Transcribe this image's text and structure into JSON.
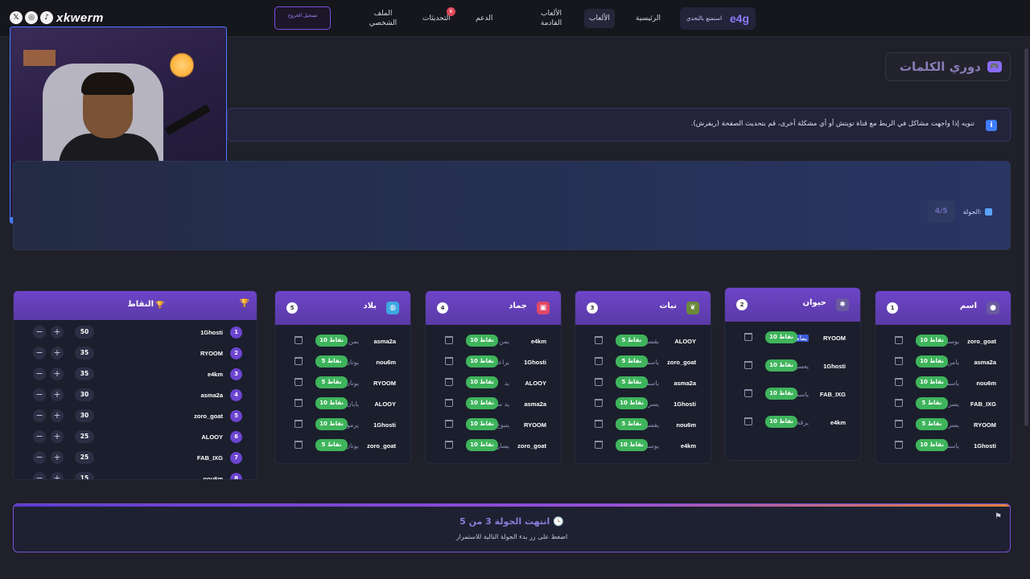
{
  "nav": {
    "brand_logo": "e4g",
    "brand_tag": "استمتع بالتحدي",
    "items": [
      {
        "label": "الرئيسية"
      },
      {
        "label": "الألعاب"
      },
      {
        "label": "الألعاب القادمة"
      },
      {
        "label": "الدعم"
      },
      {
        "label": "التحديثات",
        "badge": "6"
      },
      {
        "label": "الملف الشخصي"
      }
    ],
    "register_label": "تسجيل الخروج"
  },
  "overlay": {
    "handle": "xkwerm",
    "social_icons": [
      "x-icon",
      "instagram-icon",
      "tiktok-icon"
    ]
  },
  "page_title": "دوري الكلمات",
  "notice": "تنويه إذا واجهت مشاكل في الربط مع قناة تويتش أو أي مشكلة أخرى، قم بتحديث الصفحة (ريفرش).",
  "round": {
    "label": "الجولة:",
    "value": "4/5"
  },
  "score_card": {
    "title": "النقاط",
    "rows": [
      {
        "rank": "1",
        "player": "1Ghosti",
        "score": "50"
      },
      {
        "rank": "2",
        "player": "RYOOM",
        "score": "35"
      },
      {
        "rank": "3",
        "player": "e4km",
        "score": "35"
      },
      {
        "rank": "4",
        "player": "asma2a",
        "score": "30"
      },
      {
        "rank": "5",
        "player": "zoro_goat",
        "score": "30"
      },
      {
        "rank": "6",
        "player": "ALOOY",
        "score": "25"
      },
      {
        "rank": "7",
        "player": "FAB_IXG",
        "score": "25"
      },
      {
        "rank": "8",
        "player": "nou6m",
        "score": "15"
      }
    ]
  },
  "categories": [
    {
      "num": "5",
      "title": "بلاد",
      "icon": "globe-icon",
      "color": "#3fa8e0",
      "rows": [
        {
          "player": "asma2a",
          "word": "يمن",
          "points": "10 نقاط"
        },
        {
          "player": "nou6m",
          "word": "يونان",
          "points": "5 نقاط"
        },
        {
          "player": "RYOOM",
          "word": "يونان",
          "points": "5 نقاط"
        },
        {
          "player": "ALOOY",
          "word": "يابان",
          "points": "10 نقاط"
        },
        {
          "player": "1Ghosti",
          "word": "يرموك",
          "points": "10 نقاط"
        },
        {
          "player": "zoro_goat",
          "word": "يونان",
          "points": "5 نقاط"
        }
      ]
    },
    {
      "num": "4",
      "title": "جماد",
      "icon": "box-icon",
      "color": "#e04868",
      "rows": [
        {
          "player": "e4km",
          "word": "يمن",
          "points": "10 نقاط"
        },
        {
          "player": "1Ghosti",
          "word": "يراعة",
          "points": "10 نقاط"
        },
        {
          "player": "ALOOY",
          "word": "يد",
          "points": "10 نقاط"
        },
        {
          "player": "asma2a",
          "word": "يد سوني",
          "points": "10 نقاط"
        },
        {
          "player": "RYOOM",
          "word": "ينبوع",
          "points": "10 نقاط"
        },
        {
          "player": "zoro_goat",
          "word": "يسار",
          "points": "10 نقاط"
        }
      ]
    },
    {
      "num": "3",
      "title": "نبات",
      "icon": "leaf-icon",
      "color": "#6a8a3a",
      "rows": [
        {
          "player": "ALOOY",
          "word": "يقسون",
          "points": "5 نقاط"
        },
        {
          "player": "zoro_goat",
          "word": "ياسمين",
          "points": "5 نقاط"
        },
        {
          "player": "asma2a",
          "word": "ياسمين",
          "points": "5 نقاط"
        },
        {
          "player": "1Ghosti",
          "word": "يسر",
          "points": "10 نقاط"
        },
        {
          "player": "nou6m",
          "word": "يقسون",
          "points": "5 نقاط"
        },
        {
          "player": "e4km",
          "word": "يوسفي",
          "points": "10 نقاط"
        }
      ]
    },
    {
      "num": "2",
      "title": "حيوان",
      "icon": "paw-icon",
      "color": "#6a5aa0",
      "rows": [
        {
          "player": "RYOOM",
          "word": "يمامة",
          "points": "10 نقاط",
          "highlight": true
        },
        {
          "player": "1Ghosti",
          "word": "يعسوب",
          "points": "10 نقاط"
        },
        {
          "player": "FAB_IXG",
          "word": "ياسمين",
          "points": "10 نقاط"
        },
        {
          "player": "e4km",
          "word": "يرقة",
          "points": "10 نقاط"
        }
      ]
    },
    {
      "num": "1",
      "title": "اسم",
      "icon": "user-icon",
      "color": "#6a5aa0",
      "rows": [
        {
          "player": "zoro_goat",
          "word": "يوسف",
          "points": "10 نقاط"
        },
        {
          "player": "asma2a",
          "word": "يامن",
          "points": "10 نقاط"
        },
        {
          "player": "nou6m",
          "word": "ياسمينا",
          "points": "10 نقاط"
        },
        {
          "player": "FAB_IXG",
          "word": "يسرى",
          "points": "5 نقاط"
        },
        {
          "player": "RYOOM",
          "word": "يسرى",
          "points": "5 نقاط"
        },
        {
          "player": "1Ghosti",
          "word": "ياسمين",
          "points": "10 نقاط"
        }
      ]
    }
  ],
  "end_banner": {
    "message": "انتهت الجولة 3 من 5",
    "sub": "اضغط على زر بدء الجولة التالية للاستمرار"
  },
  "colors": {
    "accent": "#6d45c8",
    "points_green": "#3fb45c",
    "background": "#1f2029"
  }
}
